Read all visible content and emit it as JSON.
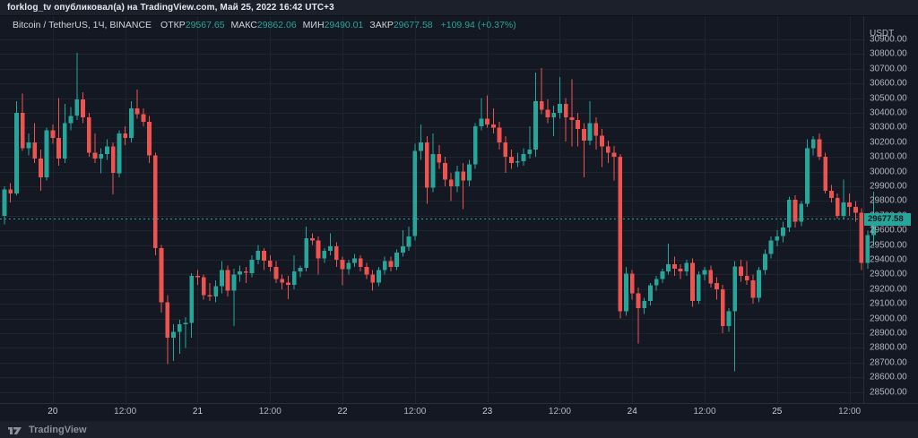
{
  "topbar": {
    "text": "forklog_tv опубликовал(а) на TradingView.com, Май 25, 2022 16:42 UTC+3"
  },
  "header": {
    "symbol": "Bitcoin / TetherUS, 1Ч, BINANCE",
    "ohlc": [
      {
        "label": "ОТКР",
        "value": "29567.65"
      },
      {
        "label": "МАКС",
        "value": "29862.06"
      },
      {
        "label": "МИН",
        "value": "29490.01"
      },
      {
        "label": "ЗАКР",
        "value": "29677.58"
      }
    ],
    "change": "+109.94 (+0.37%)"
  },
  "price_axis": {
    "currency": "USDT",
    "last_price": "29677.58"
  },
  "footer": {
    "brand": "TradingView"
  },
  "colors": {
    "background": "#141822",
    "frame": "#1b202b",
    "grid": "#1e2430",
    "axis_border": "#2a2e39",
    "text_primary": "#d1d4dc",
    "text_secondary": "#b2b5be",
    "up": "#26a69a",
    "down": "#ef5350"
  },
  "chart_data": {
    "type": "candlestick",
    "symbol": "Bitcoin / TetherUS",
    "exchange": "BINANCE",
    "interval": "1Ч",
    "x_start": "2022-05-19 16:00 UTC+3",
    "x_step_hours": 1,
    "last_candle": {
      "open": 29567.65,
      "high": 29862.06,
      "low": 29490.01,
      "close": 29677.58
    },
    "last_price": 29677.58,
    "y_axis": {
      "currency": "USDT",
      "tick_labels": [
        "30900.00",
        "30800.00",
        "30700.00",
        "30600.00",
        "30500.00",
        "30400.00",
        "30300.00",
        "30200.00",
        "30100.00",
        "30000.00",
        "29900.00",
        "29800.00",
        "29700.00",
        "29600.00",
        "29500.00",
        "29400.00",
        "29300.00",
        "29200.00",
        "29100.00",
        "29000.00",
        "28900.00",
        "28800.00",
        "28700.00",
        "28600.00",
        "28500.00"
      ]
    },
    "x_axis": {
      "ticks": [
        {
          "index": 8,
          "label": "20",
          "major": true
        },
        {
          "index": 20,
          "label": "12:00",
          "major": false
        },
        {
          "index": 32,
          "label": "21",
          "major": true
        },
        {
          "index": 44,
          "label": "12:00",
          "major": false
        },
        {
          "index": 56,
          "label": "22",
          "major": true
        },
        {
          "index": 68,
          "label": "12:00",
          "major": false
        },
        {
          "index": 80,
          "label": "23",
          "major": true
        },
        {
          "index": 92,
          "label": "12:00",
          "major": false
        },
        {
          "index": 104,
          "label": "24",
          "major": true
        },
        {
          "index": 116,
          "label": "12:00",
          "major": false
        },
        {
          "index": 128,
          "label": "25",
          "major": true
        },
        {
          "index": 140,
          "label": "12:00",
          "major": false
        }
      ]
    },
    "candles": [
      [
        29700,
        29900,
        29640,
        29880
      ],
      [
        29880,
        29920,
        29790,
        29850
      ],
      [
        29850,
        30480,
        29840,
        30400
      ],
      [
        30400,
        30530,
        30140,
        30160
      ],
      [
        30160,
        30260,
        30110,
        30200
      ],
      [
        30200,
        30330,
        30060,
        30090
      ],
      [
        30090,
        30150,
        29870,
        29960
      ],
      [
        29960,
        30300,
        29940,
        30280
      ],
      [
        30280,
        30320,
        30190,
        30230
      ],
      [
        30230,
        30500,
        30040,
        30090
      ],
      [
        30090,
        30460,
        30060,
        30330
      ],
      [
        30330,
        30440,
        30280,
        30380
      ],
      [
        30380,
        30810,
        30350,
        30490
      ],
      [
        30490,
        30540,
        30330,
        30370
      ],
      [
        30370,
        30400,
        30100,
        30130
      ],
      [
        30130,
        30260,
        30060,
        30090
      ],
      [
        30090,
        30160,
        29990,
        30120
      ],
      [
        30120,
        30220,
        30080,
        30170
      ],
      [
        30170,
        30200,
        29845,
        29990
      ],
      [
        29990,
        30280,
        29960,
        30260
      ],
      [
        30260,
        30310,
        30180,
        30230
      ],
      [
        30230,
        30480,
        30200,
        30430
      ],
      [
        30430,
        30560,
        30360,
        30390
      ],
      [
        30390,
        30430,
        30310,
        30340
      ],
      [
        30340,
        30380,
        30060,
        30110
      ],
      [
        30110,
        30130,
        29430,
        29480
      ],
      [
        29480,
        29500,
        29040,
        29110
      ],
      [
        29110,
        29160,
        28690,
        28870
      ],
      [
        28870,
        28960,
        28710,
        28910
      ],
      [
        28910,
        28990,
        28760,
        28960
      ],
      [
        28960,
        29010,
        28800,
        28970
      ],
      [
        28970,
        29310,
        28870,
        29290
      ],
      [
        29290,
        29330,
        29230,
        29280
      ],
      [
        29280,
        29300,
        29130,
        29160
      ],
      [
        29160,
        29240,
        29120,
        29150
      ],
      [
        29150,
        29260,
        29110,
        29220
      ],
      [
        29220,
        29390,
        29170,
        29330
      ],
      [
        29330,
        29360,
        29150,
        29190
      ],
      [
        29190,
        29340,
        28950,
        29300
      ],
      [
        29300,
        29360,
        29250,
        29320
      ],
      [
        29320,
        29350,
        29240,
        29310
      ],
      [
        29310,
        29430,
        29280,
        29400
      ],
      [
        29400,
        29500,
        29370,
        29460
      ],
      [
        29460,
        29480,
        29330,
        29395
      ],
      [
        29395,
        29430,
        29320,
        29350
      ],
      [
        29350,
        29390,
        29240,
        29270
      ],
      [
        29270,
        29300,
        29200,
        29245
      ],
      [
        29245,
        29290,
        29130,
        29230
      ],
      [
        29230,
        29430,
        29200,
        29320
      ],
      [
        29320,
        29360,
        29280,
        29345
      ],
      [
        29345,
        29625,
        29320,
        29545
      ],
      [
        29545,
        29580,
        29500,
        29530
      ],
      [
        29530,
        29560,
        29300,
        29410
      ],
      [
        29410,
        29480,
        29380,
        29460
      ],
      [
        29460,
        29580,
        29430,
        29490
      ],
      [
        29490,
        29520,
        29350,
        29400
      ],
      [
        29400,
        29420,
        29225,
        29335
      ],
      [
        29335,
        29400,
        29300,
        29380
      ],
      [
        29380,
        29440,
        29350,
        29410
      ],
      [
        29410,
        29430,
        29320,
        29350
      ],
      [
        29350,
        29380,
        29270,
        29300
      ],
      [
        29300,
        29330,
        29190,
        29245
      ],
      [
        29245,
        29350,
        29220,
        29330
      ],
      [
        29330,
        29420,
        29300,
        29390
      ],
      [
        29390,
        29420,
        29320,
        29350
      ],
      [
        29350,
        29470,
        29330,
        29450
      ],
      [
        29450,
        29600,
        29420,
        29490
      ],
      [
        29490,
        29625,
        29460,
        29560
      ],
      [
        29560,
        30190,
        29530,
        30140
      ],
      [
        30140,
        30320,
        30080,
        30200
      ],
      [
        30200,
        30240,
        29780,
        29890
      ],
      [
        29890,
        30260,
        29860,
        30120
      ],
      [
        30120,
        30180,
        30020,
        30060
      ],
      [
        30060,
        30100,
        29900,
        29945
      ],
      [
        29945,
        29990,
        29800,
        29900
      ],
      [
        29900,
        30040,
        29860,
        30000
      ],
      [
        30000,
        30060,
        29745,
        29940
      ],
      [
        29940,
        30080,
        29900,
        30050
      ],
      [
        30050,
        30330,
        30020,
        30310
      ],
      [
        30310,
        30500,
        30280,
        30360
      ],
      [
        30360,
        30520,
        30300,
        30320
      ],
      [
        30320,
        30430,
        30260,
        30300
      ],
      [
        30300,
        30340,
        30150,
        30200
      ],
      [
        30200,
        30240,
        29990,
        30100
      ],
      [
        30100,
        30150,
        30020,
        30060
      ],
      [
        30060,
        30130,
        30030,
        30070
      ],
      [
        30070,
        30160,
        30040,
        30120
      ],
      [
        30120,
        30310,
        30090,
        30150
      ],
      [
        30150,
        30675,
        30100,
        30480
      ],
      [
        30480,
        30705,
        30390,
        30420
      ],
      [
        30420,
        30490,
        30330,
        30370
      ],
      [
        30370,
        30450,
        30240,
        30400
      ],
      [
        30400,
        30645,
        30360,
        30460
      ],
      [
        30460,
        30500,
        30205,
        30370
      ],
      [
        30370,
        30630,
        30170,
        30350
      ],
      [
        30350,
        30400,
        30170,
        30290
      ],
      [
        30290,
        30330,
        29960,
        30210
      ],
      [
        30210,
        30480,
        30180,
        30330
      ],
      [
        30330,
        30370,
        30150,
        30245
      ],
      [
        30245,
        30290,
        30030,
        30170
      ],
      [
        30170,
        30210,
        30060,
        30130
      ],
      [
        30130,
        30175,
        29940,
        30100
      ],
      [
        30100,
        30120,
        29000,
        29050
      ],
      [
        29050,
        29350,
        29020,
        29305
      ],
      [
        29305,
        29330,
        29130,
        29170
      ],
      [
        29170,
        29210,
        28830,
        29070
      ],
      [
        29070,
        29140,
        29030,
        29120
      ],
      [
        29120,
        29240,
        29090,
        29225
      ],
      [
        29225,
        29290,
        29190,
        29270
      ],
      [
        29270,
        29340,
        29240,
        29320
      ],
      [
        29320,
        29510,
        29300,
        29370
      ],
      [
        29370,
        29420,
        29290,
        29340
      ],
      [
        29340,
        29370,
        29270,
        29320
      ],
      [
        29320,
        29400,
        29290,
        29380
      ],
      [
        29380,
        29410,
        29080,
        29120
      ],
      [
        29120,
        29320,
        29100,
        29300
      ],
      [
        29300,
        29350,
        29260,
        29330
      ],
      [
        29330,
        29360,
        29210,
        29240
      ],
      [
        29240,
        29280,
        29130,
        29200
      ],
      [
        29200,
        29230,
        28900,
        28950
      ],
      [
        28950,
        29070,
        28910,
        29050
      ],
      [
        29050,
        29390,
        28640,
        29355
      ],
      [
        29355,
        29400,
        29250,
        29290
      ],
      [
        29290,
        29390,
        29230,
        29260
      ],
      [
        29260,
        29300,
        29100,
        29140
      ],
      [
        29140,
        29350,
        29110,
        29330
      ],
      [
        29330,
        29470,
        29300,
        29440
      ],
      [
        29440,
        29560,
        29410,
        29530
      ],
      [
        29530,
        29600,
        29490,
        29560
      ],
      [
        29560,
        29660,
        29520,
        29620
      ],
      [
        29620,
        29830,
        29590,
        29810
      ],
      [
        29810,
        29840,
        29620,
        29660
      ],
      [
        29660,
        29800,
        29630,
        29780
      ],
      [
        29780,
        30220,
        29760,
        30160
      ],
      [
        30160,
        30240,
        30110,
        30220
      ],
      [
        30220,
        30260,
        30080,
        30100
      ],
      [
        30100,
        30130,
        29850,
        29870
      ],
      [
        29870,
        29910,
        29790,
        29820
      ],
      [
        29820,
        29850,
        29680,
        29700
      ],
      [
        29700,
        29945,
        29680,
        29790
      ],
      [
        29790,
        29850,
        29700,
        29760
      ],
      [
        29760,
        29800,
        29660,
        29720
      ],
      [
        29720,
        29750,
        29330,
        29380
      ],
      [
        29380,
        29600,
        29340,
        29567
      ],
      [
        29567.65,
        29862.06,
        29490.01,
        29677.58
      ]
    ]
  }
}
